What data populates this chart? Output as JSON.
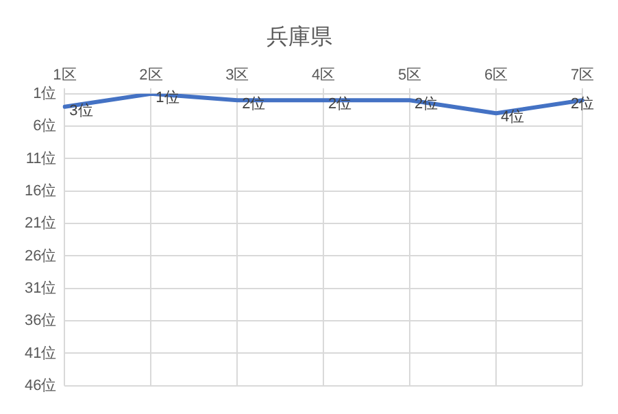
{
  "chart_data": {
    "type": "line",
    "title": "兵庫県",
    "categories": [
      "1区",
      "2区",
      "3区",
      "4区",
      "5区",
      "6区",
      "7区"
    ],
    "series": [
      {
        "color": "#4472c4",
        "values": [
          3,
          1,
          2,
          2,
          2,
          4,
          2
        ],
        "value_labels": [
          "3位",
          "1位",
          "2位",
          "2位",
          "2位",
          "4位",
          "2位"
        ]
      }
    ],
    "ylim": [
      46,
      1
    ],
    "yticks": [
      {
        "value": 1,
        "label": "1位"
      },
      {
        "value": 6,
        "label": "6位"
      },
      {
        "value": 11,
        "label": "11位"
      },
      {
        "value": 16,
        "label": "16位"
      },
      {
        "value": 21,
        "label": "21位"
      },
      {
        "value": 26,
        "label": "26位"
      },
      {
        "value": 31,
        "label": "31位"
      },
      {
        "value": 36,
        "label": "36位"
      },
      {
        "value": 41,
        "label": "41位"
      },
      {
        "value": 46,
        "label": "46位"
      }
    ],
    "grid": true,
    "legend": false,
    "marker": "none",
    "line_style": "solid"
  }
}
